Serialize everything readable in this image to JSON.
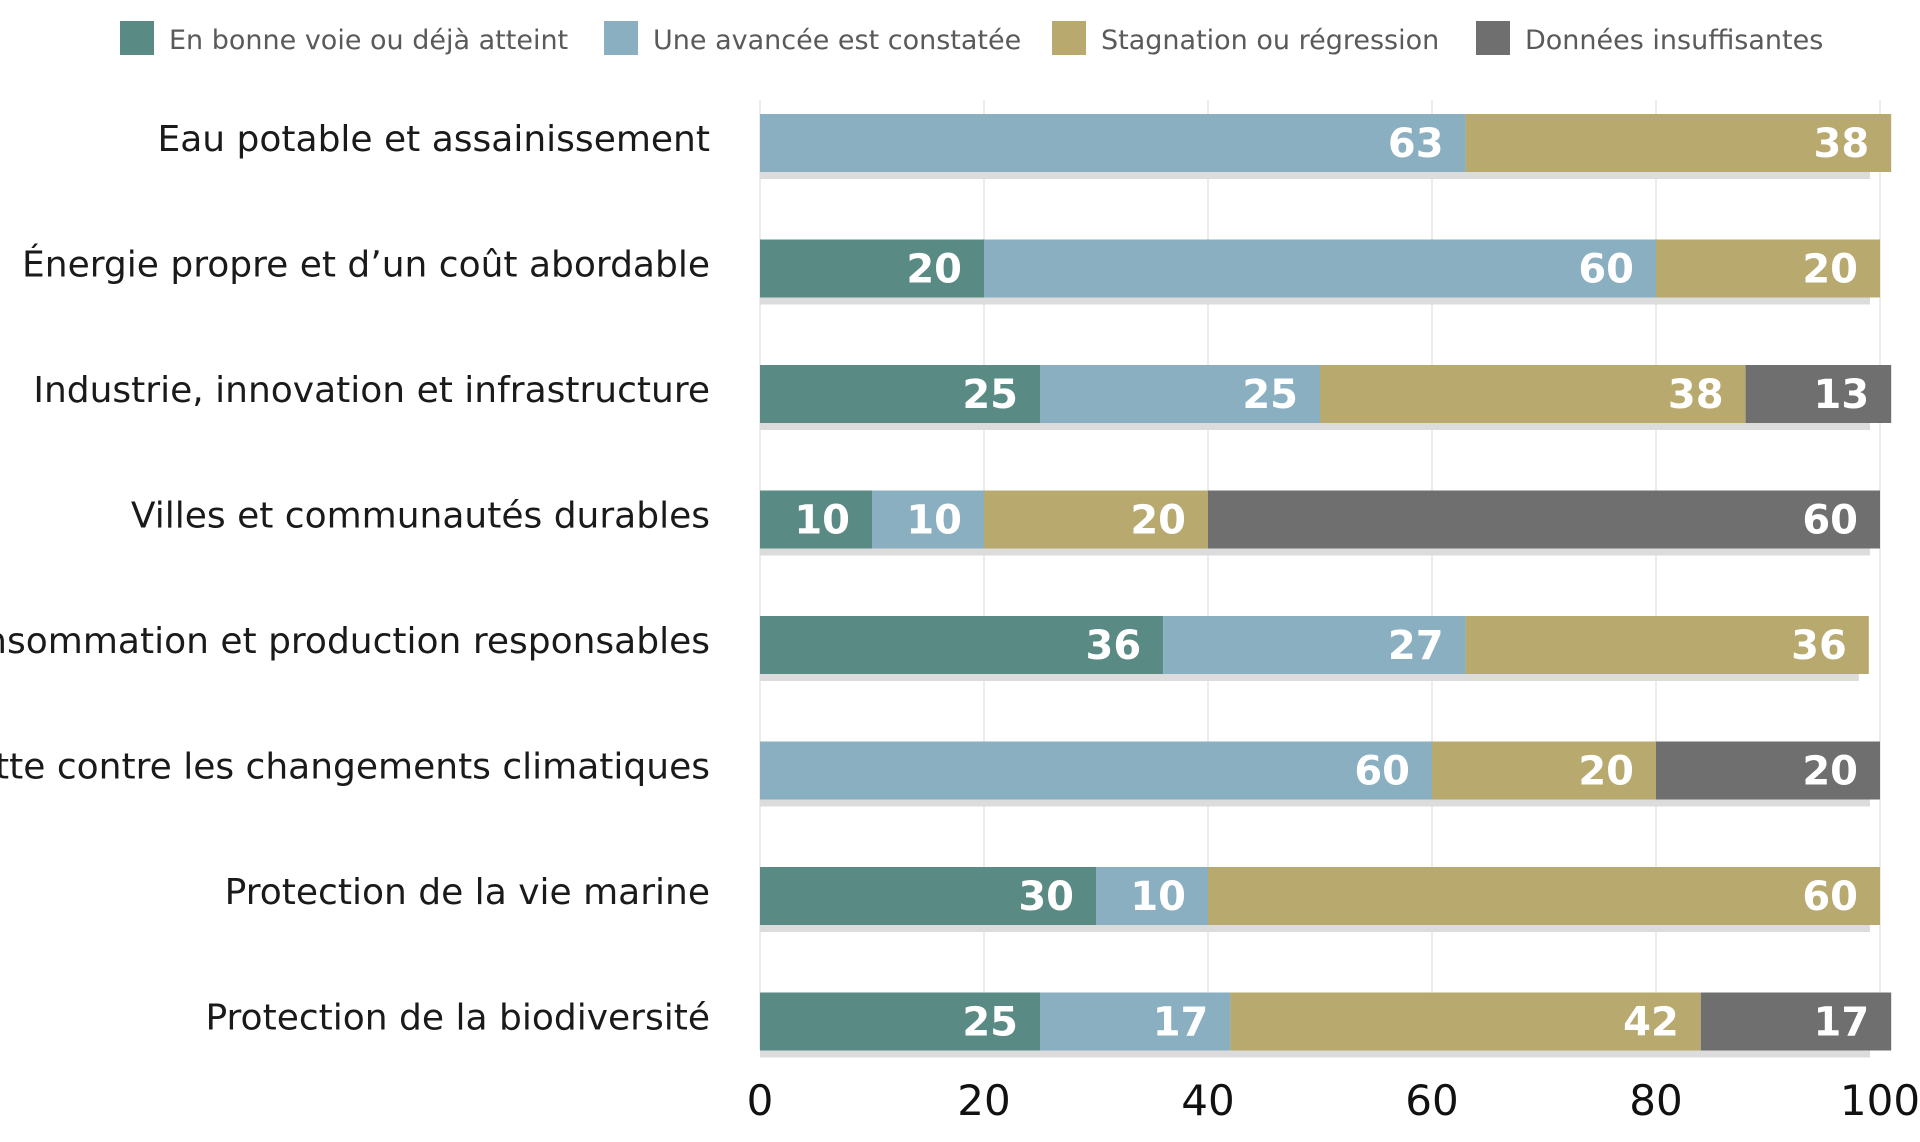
{
  "chart_data": {
    "type": "bar",
    "orientation": "horizontal",
    "stacked": true,
    "categories": [
      "Eau potable et assainissement",
      "Énergie propre et d’un coût abordable",
      "Industrie, innovation et infrastructure",
      "Villes et communautés durables",
      "Consommation et production responsables",
      "Lutte contre les changements climatiques",
      "Protection de la vie marine",
      "Protection de la biodiversité"
    ],
    "series": [
      {
        "name": "En bonne voie ou déjà atteint",
        "color": "#5a8a84",
        "values": [
          0,
          20,
          25,
          10,
          36,
          0,
          30,
          25
        ]
      },
      {
        "name": "Une avancée est constatée",
        "color": "#8aafc0",
        "values": [
          63,
          60,
          25,
          10,
          27,
          60,
          10,
          17
        ]
      },
      {
        "name": "Stagnation ou régression",
        "color": "#b8a96e",
        "values": [
          38,
          20,
          38,
          20,
          36,
          20,
          60,
          42
        ]
      },
      {
        "name": "Données insuffisantes",
        "color": "#6f6f6f",
        "values": [
          0,
          0,
          13,
          60,
          0,
          20,
          0,
          17
        ]
      }
    ],
    "xlim": [
      0,
      100
    ],
    "xticks": [
      "0",
      "20",
      "40",
      "60",
      "80",
      "100"
    ],
    "grid": true,
    "legend": "top"
  }
}
